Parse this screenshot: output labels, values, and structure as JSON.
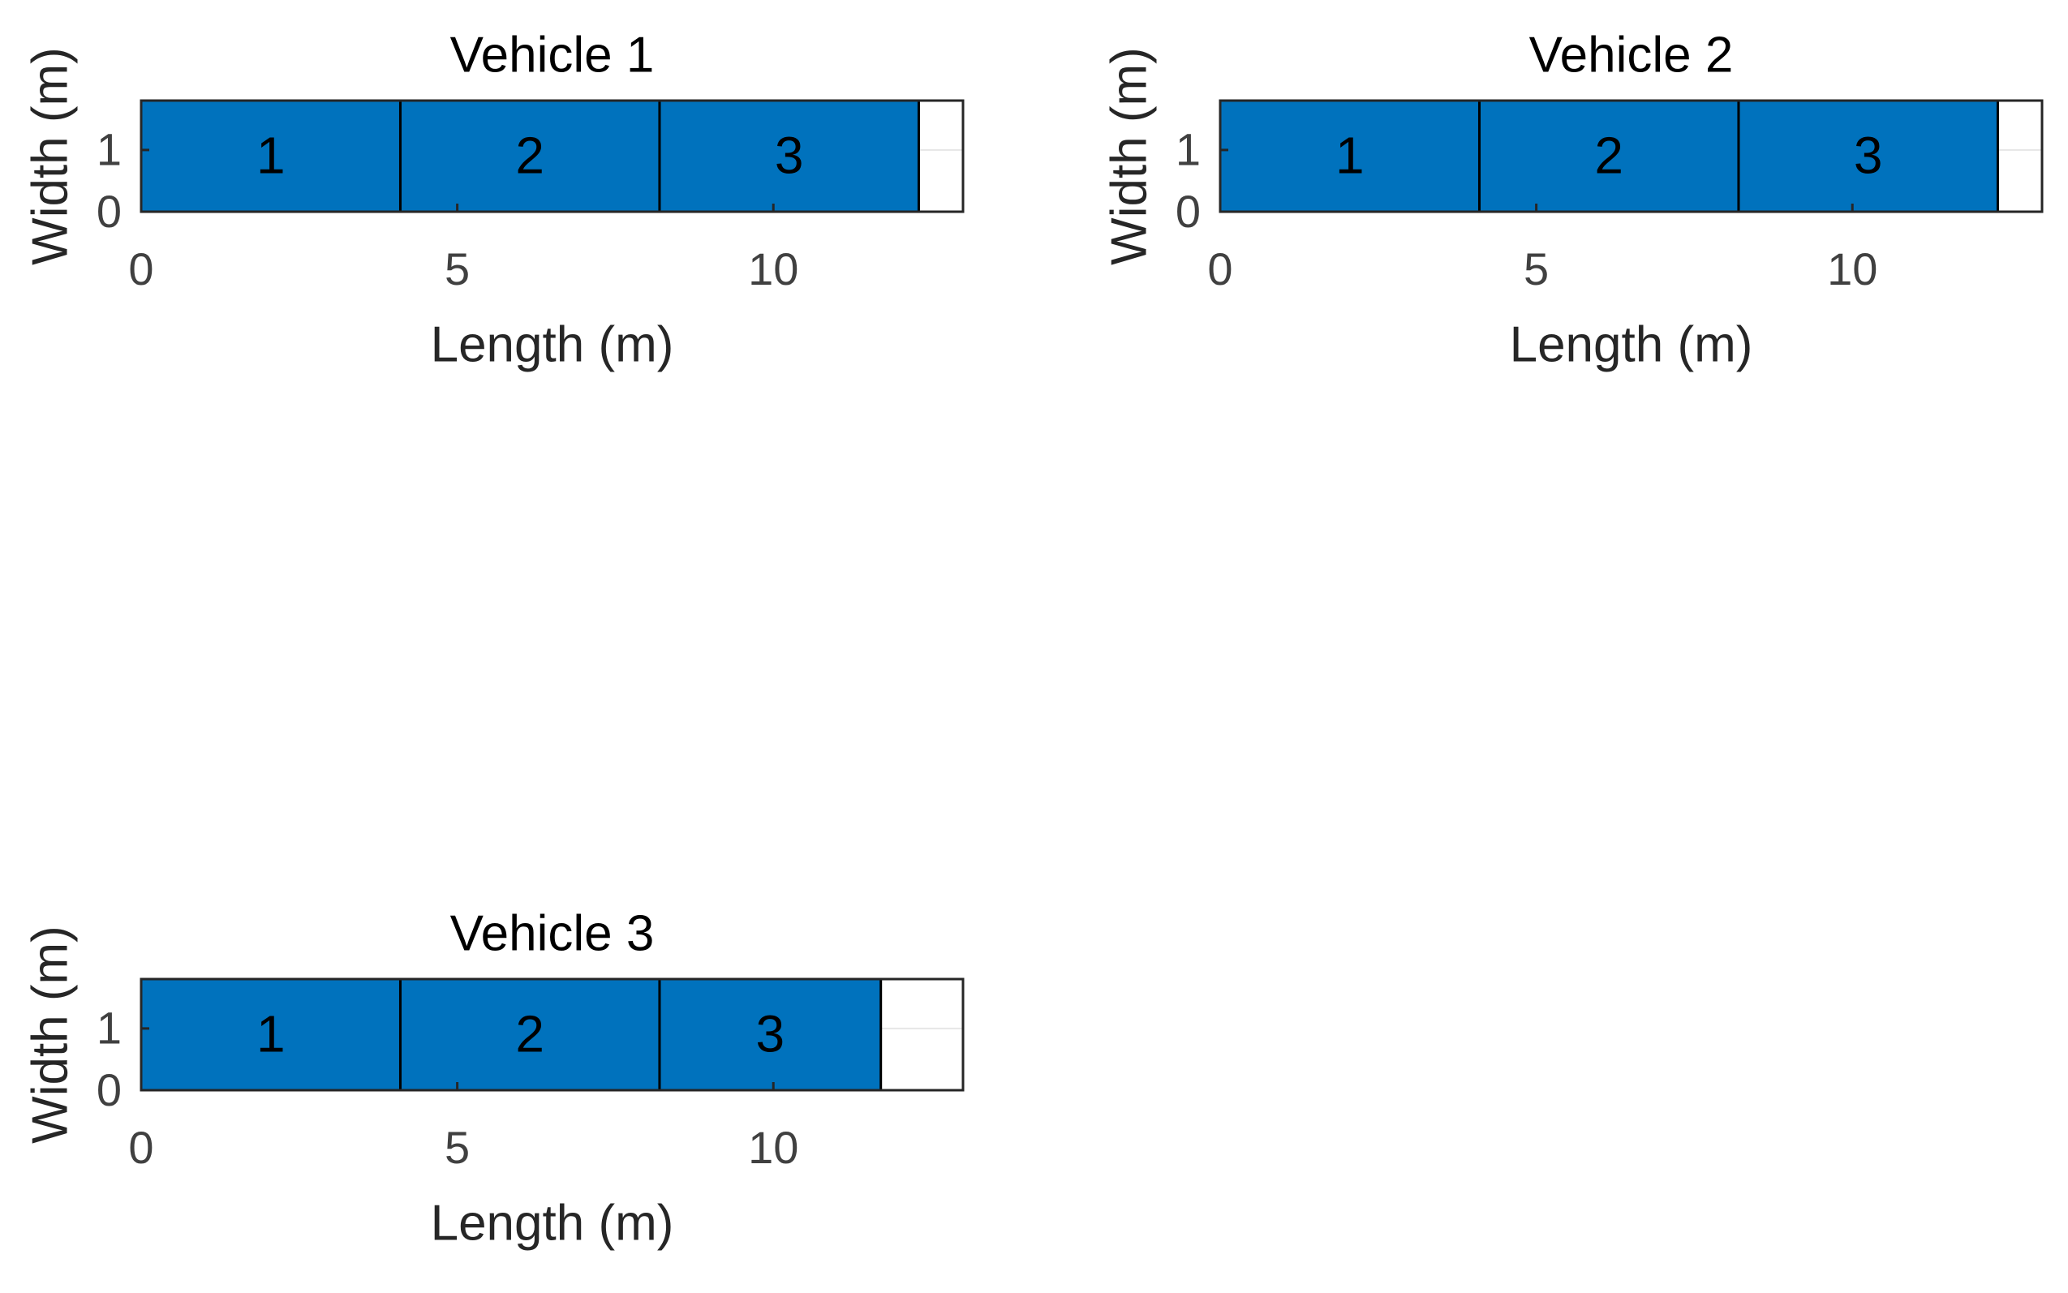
{
  "chart_data": [
    {
      "type": "bar",
      "orientation": "horizontal",
      "stacked": true,
      "title": "Vehicle 1",
      "xlabel": "Length (m)",
      "ylabel": "Width (m)",
      "categories": [
        "1",
        "2",
        "3"
      ],
      "values": [
        4.1,
        4.1,
        4.1
      ],
      "color": "#0072bd",
      "xlim": [
        0,
        13
      ],
      "xticks": [
        0,
        5,
        10
      ],
      "ylim": [
        0,
        1.8
      ],
      "yticks": [
        0,
        1
      ],
      "grid": true
    },
    {
      "type": "bar",
      "orientation": "horizontal",
      "stacked": true,
      "title": "Vehicle 2",
      "xlabel": "Length (m)",
      "ylabel": "Width (m)",
      "categories": [
        "1",
        "2",
        "3"
      ],
      "values": [
        4.1,
        4.1,
        4.1
      ],
      "color": "#0072bd",
      "xlim": [
        0,
        13
      ],
      "xticks": [
        0,
        5,
        10
      ],
      "ylim": [
        0,
        1.8
      ],
      "yticks": [
        0,
        1
      ],
      "grid": true
    },
    {
      "type": "bar",
      "orientation": "horizontal",
      "stacked": true,
      "title": "Vehicle 3",
      "xlabel": "Length (m)",
      "ylabel": "Width (m)",
      "categories": [
        "1",
        "2",
        "3"
      ],
      "values": [
        4.1,
        4.1,
        3.5
      ],
      "color": "#0072bd",
      "xlim": [
        0,
        13
      ],
      "xticks": [
        0,
        5,
        10
      ],
      "ylim": [
        0,
        1.8
      ],
      "yticks": [
        0,
        1
      ],
      "grid": true
    }
  ]
}
